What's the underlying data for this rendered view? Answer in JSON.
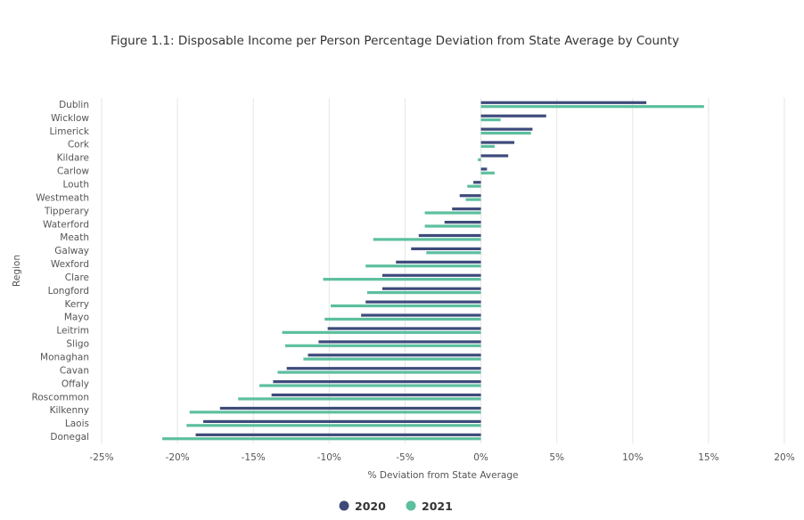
{
  "chart_data": {
    "type": "bar",
    "orientation": "horizontal",
    "title": "Figure 1.1: Disposable Income per Person Percentage Deviation from State Average by County",
    "xlabel": "% Deviation from State Average",
    "ylabel": "Region",
    "xlim": [
      -25,
      20
    ],
    "xticks": [
      -25,
      -20,
      -15,
      -10,
      -5,
      0,
      5,
      10,
      15,
      20
    ],
    "tick_suffix": "%",
    "grid": "vertical",
    "legend_position": "bottom-center",
    "categories": [
      "Dublin",
      "Wicklow",
      "Limerick",
      "Cork",
      "Kildare",
      "Carlow",
      "Louth",
      "Westmeath",
      "Tipperary",
      "Waterford",
      "Meath",
      "Galway",
      "Wexford",
      "Clare",
      "Longford",
      "Kerry",
      "Mayo",
      "Leitrim",
      "Sligo",
      "Monaghan",
      "Cavan",
      "Offaly",
      "Roscommon",
      "Kilkenny",
      "Laois",
      "Donegal"
    ],
    "series": [
      {
        "name": "2020",
        "color": "#3d4a7a",
        "values": [
          10.9,
          4.3,
          3.4,
          2.2,
          1.8,
          0.4,
          -0.5,
          -1.4,
          -1.9,
          -2.4,
          -4.1,
          -4.6,
          -5.6,
          -6.5,
          -6.5,
          -7.6,
          -7.9,
          -10.1,
          -10.7,
          -11.4,
          -12.8,
          -13.7,
          -13.8,
          -17.2,
          -18.3,
          -18.8
        ]
      },
      {
        "name": "2021",
        "color": "#5cbf9e",
        "values": [
          14.7,
          1.3,
          3.3,
          0.9,
          -0.2,
          0.9,
          -0.9,
          -1.0,
          -3.7,
          -3.7,
          -7.1,
          -3.6,
          -7.6,
          -10.4,
          -7.5,
          -9.9,
          -10.3,
          -13.1,
          -12.9,
          -11.7,
          -13.4,
          -14.6,
          -16.0,
          -19.2,
          -19.4,
          -21.0
        ]
      }
    ]
  }
}
